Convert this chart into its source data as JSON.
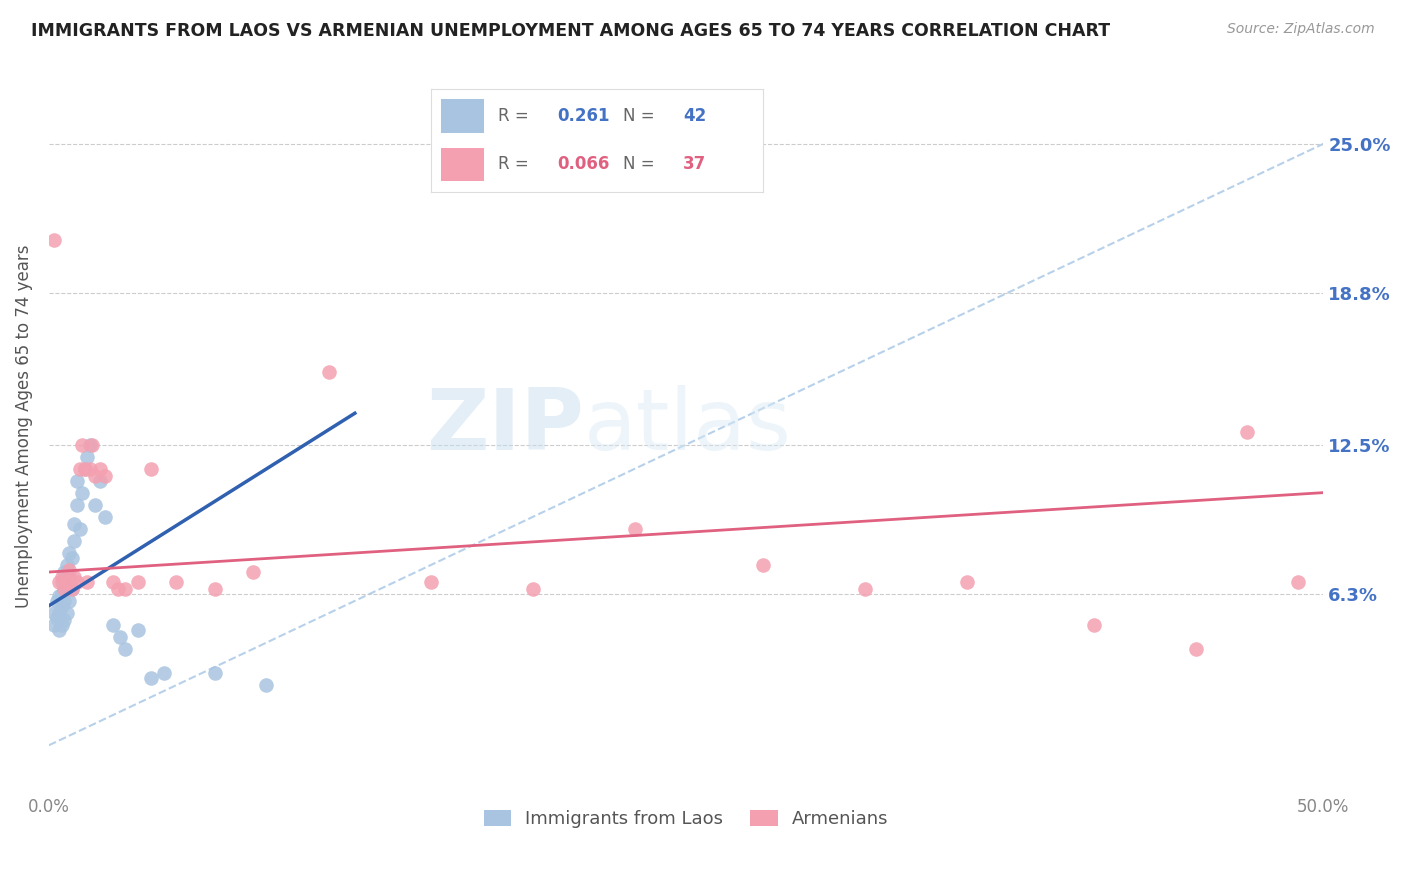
{
  "title": "IMMIGRANTS FROM LAOS VS ARMENIAN UNEMPLOYMENT AMONG AGES 65 TO 74 YEARS CORRELATION CHART",
  "source": "Source: ZipAtlas.com",
  "ylabel": "Unemployment Among Ages 65 to 74 years",
  "ytick_labels": [
    "25.0%",
    "18.8%",
    "12.5%",
    "6.3%"
  ],
  "ytick_values": [
    0.25,
    0.188,
    0.125,
    0.063
  ],
  "xlim": [
    0.0,
    0.5
  ],
  "ylim": [
    -0.02,
    0.285
  ],
  "legend_label1": "Immigrants from Laos",
  "legend_label2": "Armenians",
  "R1": "0.261",
  "N1": "42",
  "R2": "0.066",
  "N2": "37",
  "color_blue": "#A8C4E0",
  "color_pink": "#F4A0B0",
  "line_blue": "#3060B0",
  "line_pink": "#E06080",
  "line_dashed_color": "#B0CCE8",
  "watermark_zip": "ZIP",
  "watermark_atlas": "atlas",
  "laos_x": [
    0.002,
    0.002,
    0.003,
    0.003,
    0.004,
    0.004,
    0.004,
    0.005,
    0.005,
    0.005,
    0.005,
    0.006,
    0.006,
    0.006,
    0.007,
    0.007,
    0.007,
    0.008,
    0.008,
    0.008,
    0.009,
    0.009,
    0.01,
    0.01,
    0.011,
    0.011,
    0.012,
    0.013,
    0.014,
    0.015,
    0.016,
    0.018,
    0.02,
    0.022,
    0.025,
    0.028,
    0.03,
    0.035,
    0.04,
    0.045,
    0.065,
    0.085
  ],
  "laos_y": [
    0.05,
    0.055,
    0.053,
    0.06,
    0.048,
    0.055,
    0.062,
    0.05,
    0.058,
    0.063,
    0.068,
    0.052,
    0.06,
    0.072,
    0.055,
    0.065,
    0.075,
    0.06,
    0.07,
    0.08,
    0.065,
    0.078,
    0.085,
    0.092,
    0.1,
    0.11,
    0.09,
    0.105,
    0.115,
    0.12,
    0.125,
    0.1,
    0.11,
    0.095,
    0.05,
    0.045,
    0.04,
    0.048,
    0.028,
    0.03,
    0.03,
    0.025
  ],
  "armenian_x": [
    0.002,
    0.004,
    0.005,
    0.006,
    0.007,
    0.008,
    0.009,
    0.01,
    0.011,
    0.012,
    0.013,
    0.014,
    0.015,
    0.016,
    0.017,
    0.018,
    0.02,
    0.022,
    0.025,
    0.027,
    0.03,
    0.035,
    0.04,
    0.05,
    0.065,
    0.08,
    0.11,
    0.15,
    0.19,
    0.23,
    0.28,
    0.32,
    0.36,
    0.41,
    0.45,
    0.47,
    0.49
  ],
  "armenian_y": [
    0.21,
    0.068,
    0.07,
    0.065,
    0.068,
    0.073,
    0.065,
    0.07,
    0.068,
    0.115,
    0.125,
    0.115,
    0.068,
    0.115,
    0.125,
    0.112,
    0.115,
    0.112,
    0.068,
    0.065,
    0.065,
    0.068,
    0.115,
    0.068,
    0.065,
    0.072,
    0.155,
    0.068,
    0.065,
    0.09,
    0.075,
    0.065,
    0.068,
    0.05,
    0.04,
    0.13,
    0.068
  ],
  "blue_line_x0": 0.0,
  "blue_line_x1": 0.12,
  "blue_line_y0": 0.058,
  "blue_line_y1": 0.138,
  "pink_line_x0": 0.0,
  "pink_line_x1": 0.5,
  "pink_line_y0": 0.072,
  "pink_line_y1": 0.105,
  "dash_line_x0": 0.0,
  "dash_line_x1": 0.5,
  "dash_line_y0": 0.0,
  "dash_line_y1": 0.25
}
